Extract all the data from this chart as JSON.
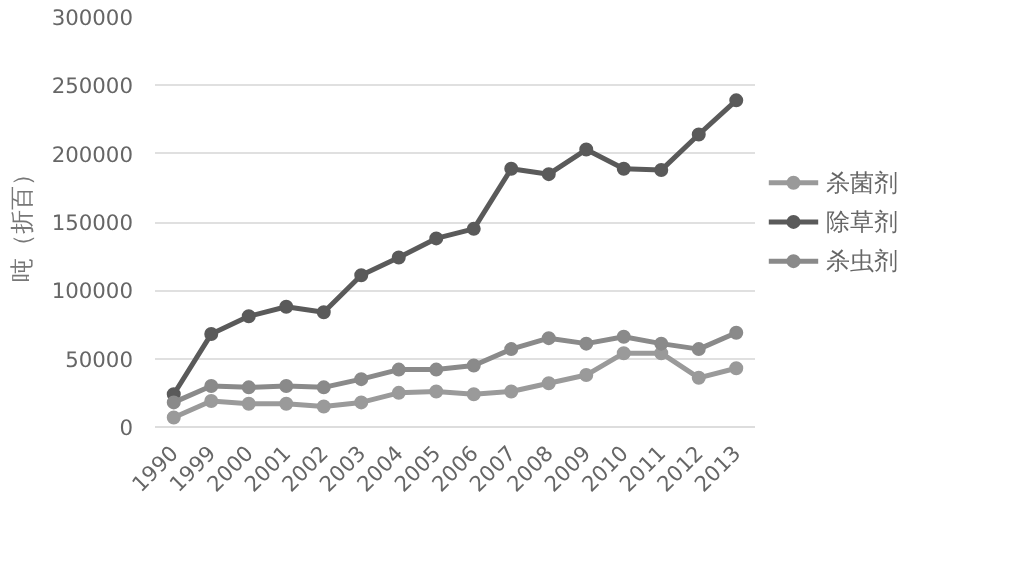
{
  "chart_data": {
    "type": "line",
    "ylabel": "吨（折百）",
    "categories": [
      "1990",
      "1999",
      "2000",
      "2001",
      "2002",
      "2003",
      "2004",
      "2005",
      "2006",
      "2007",
      "2008",
      "2009",
      "2010",
      "2011",
      "2012",
      "2013"
    ],
    "series": [
      {
        "name": "杀菌剂",
        "color": "#9a9a9a",
        "values": [
          7000,
          19000,
          17000,
          17000,
          15000,
          18000,
          25000,
          26000,
          24000,
          26000,
          32000,
          38000,
          54000,
          54000,
          36000,
          43000
        ]
      },
      {
        "name": "除草剂",
        "color": "#5a5a5a",
        "values": [
          24000,
          68000,
          81000,
          88000,
          84000,
          111000,
          124000,
          138000,
          145000,
          189000,
          185000,
          203000,
          189000,
          188000,
          214000,
          239000
        ]
      },
      {
        "name": "杀虫剂",
        "color": "#8a8a8a",
        "values": [
          18000,
          30000,
          29000,
          30000,
          29000,
          35000,
          42000,
          42000,
          45000,
          57000,
          65000,
          61000,
          66000,
          61000,
          57000,
          69000
        ]
      }
    ],
    "ylim": [
      0,
      300000
    ],
    "yticks": [
      0,
      50000,
      100000,
      150000,
      200000,
      250000,
      300000
    ],
    "grid": "y",
    "legend": "right",
    "marker": "circle",
    "line_style": "solid"
  }
}
